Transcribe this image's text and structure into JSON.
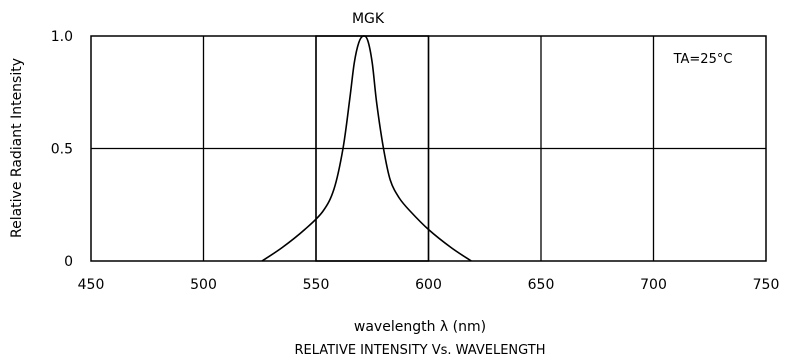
{
  "chart_data": {
    "type": "line",
    "title": "MGK",
    "xlabel": "wavelength λ (nm)",
    "ylabel": "Relative Radiant Intensity",
    "caption": "RELATIVE INTENSITY Vs. WAVELENGTH",
    "annotation": "TA=25°C",
    "xlim": [
      450,
      750
    ],
    "ylim": [
      0,
      1.0
    ],
    "x_ticks": [
      450,
      500,
      550,
      600,
      650,
      700,
      750
    ],
    "x_tick_labels": [
      "450",
      "500",
      "550",
      "600",
      "650",
      "700",
      "750"
    ],
    "y_ticks": [
      0,
      0.5,
      1.0
    ],
    "y_tick_labels": [
      "0",
      "0.5",
      "1.0"
    ],
    "grid": true,
    "highlight_x_range": [
      550,
      600
    ],
    "series": [
      {
        "x": [
          526,
          535,
          545,
          553,
          558,
          562,
          565,
          567,
          569,
          571,
          573,
          575,
          577,
          580,
          583,
          587,
          592,
          600,
          610,
          619
        ],
        "y": [
          0.0,
          0.06,
          0.14,
          0.22,
          0.32,
          0.5,
          0.72,
          0.88,
          0.97,
          1.0,
          0.98,
          0.88,
          0.7,
          0.5,
          0.36,
          0.28,
          0.22,
          0.14,
          0.06,
          0.0
        ]
      }
    ]
  }
}
